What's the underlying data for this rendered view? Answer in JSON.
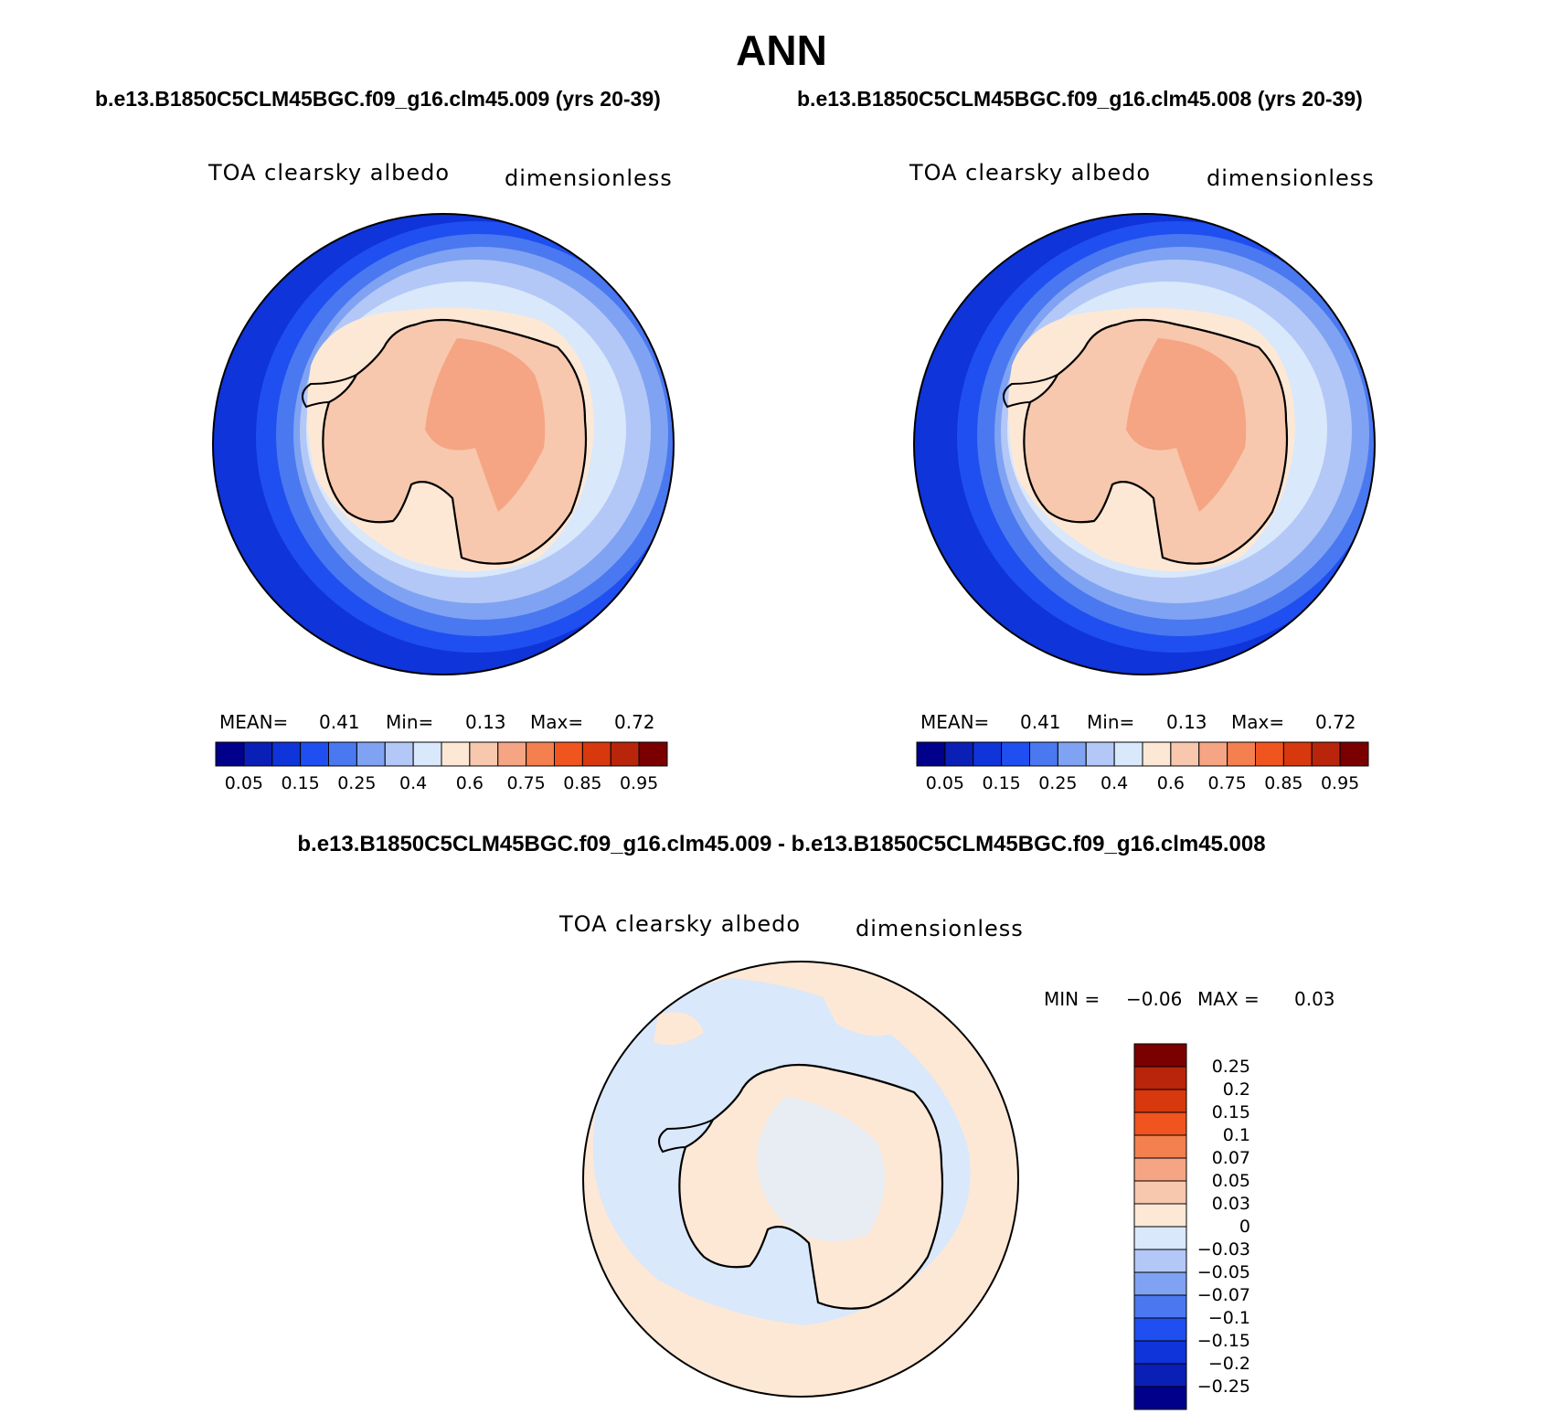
{
  "title": "ANN",
  "case_titles": [
    "b.e13.B1850C5CLM45BGC.f09_g16.clm45.009 (yrs 20-39)",
    "b.e13.B1850C5CLM45BGC.f09_g16.clm45.008 (yrs 20-39)"
  ],
  "diff_title": "b.e13.B1850C5CLM45BGC.f09_g16.clm45.009 - b.e13.B1850C5CLM45BGC.f09_g16.clm45.008",
  "panels": [
    {
      "variable": "TOA clearsky albedo",
      "units": "dimensionless",
      "stats": {
        "mean_label": "MEAN=",
        "mean": "0.41",
        "min_label": "Min=",
        "min": "0.13",
        "max_label": "Max=",
        "max": "0.72"
      }
    },
    {
      "variable": "TOA clearsky albedo",
      "units": "dimensionless",
      "stats": {
        "mean_label": "MEAN=",
        "mean": "0.41",
        "min_label": "Min=",
        "min": "0.13",
        "max_label": "Max=",
        "max": "0.72"
      }
    }
  ],
  "diff_panel": {
    "variable": "TOA clearsky albedo",
    "units": "dimensionless",
    "stats": {
      "min_label": "MIN =",
      "min": "−0.06",
      "max_label": "MAX =",
      "max": "0.03"
    }
  },
  "abs_colorbar": {
    "colors": [
      "#00008b",
      "#0a1fb5",
      "#0f34d9",
      "#1f4ff0",
      "#4a78f0",
      "#7fa3f2",
      "#b3c8f7",
      "#d9e8fb",
      "#fde8d6",
      "#f7c8ad",
      "#f5a583",
      "#f47f4f",
      "#f0541f",
      "#d8380d",
      "#b8250a",
      "#7a0000"
    ],
    "tick_labels": [
      "0.05",
      "0.15",
      "0.25",
      "0.4",
      "0.6",
      "0.75",
      "0.85",
      "0.95"
    ]
  },
  "diff_colorbar": {
    "colors": [
      "#00008b",
      "#0a1fb5",
      "#0f34d9",
      "#1f4ff0",
      "#4a78f0",
      "#7fa3f2",
      "#b3c8f7",
      "#d9e8fb",
      "#fde8d6",
      "#f7c8ad",
      "#f5a583",
      "#f47f4f",
      "#f0541f",
      "#d8380d",
      "#b8250a",
      "#7a0000"
    ],
    "tick_labels": [
      "0.25",
      "0.2",
      "0.15",
      "0.1",
      "0.07",
      "0.05",
      "0.03",
      "0",
      "−0.03",
      "−0.05",
      "−0.07",
      "−0.1",
      "−0.15",
      "−0.2",
      "−0.25"
    ]
  }
}
